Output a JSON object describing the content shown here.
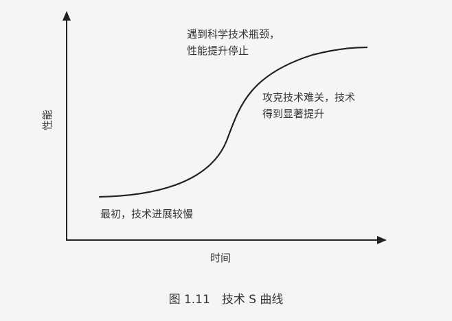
{
  "axes": {
    "y_label": "性能",
    "x_label": "时间"
  },
  "annotations": {
    "top": [
      "遇到科学技术瓶颈，",
      "性能提升停止"
    ],
    "middle": [
      "攻克技术难关，技术",
      "得到显著提升"
    ],
    "bottom": [
      "最初，技术进展较慢"
    ]
  },
  "caption": "图 1.11　技术 S 曲线",
  "colors": {
    "line": "#222222",
    "text": "#333333",
    "background": "#f5f5f3"
  }
}
